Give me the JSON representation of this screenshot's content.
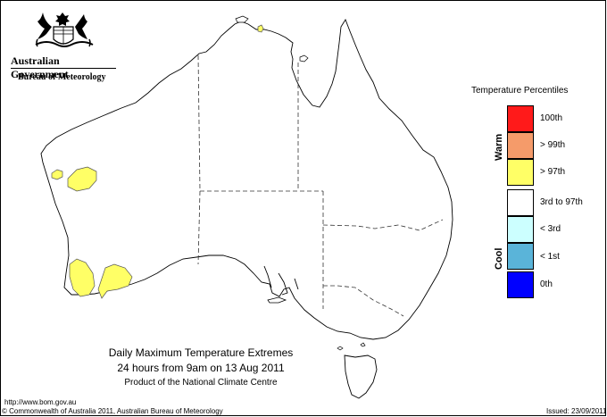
{
  "agency": {
    "government": "Australian Government",
    "bureau": "Bureau of Meteorology"
  },
  "map": {
    "title_line_1": "Daily Maximum Temperature Extremes",
    "title_line_2": "24 hours from 9am on 13 Aug 2011",
    "title_line_3": "Product of the National Climate Centre"
  },
  "legend": {
    "title": "Temperature Percentiles",
    "warm_label": "Warm",
    "cool_label": "Cool",
    "items": [
      {
        "label": "100th",
        "color": "#ff1a1a"
      },
      {
        "label": "> 99th",
        "color": "#f59b6a"
      },
      {
        "label": "> 97th",
        "color": "#ffff66"
      },
      {
        "label": "3rd to 97th",
        "color": "#ffffff"
      },
      {
        "label": "< 3rd",
        "color": "#ccffff"
      },
      {
        "label": "< 1st",
        "color": "#5ab4d9"
      },
      {
        "label": "0th",
        "color": "#0000ff"
      }
    ]
  },
  "footer": {
    "url": "http://www.bom.gov.au",
    "copyright": "© Commonwealth of Australia 2011, Australian Bureau of Meteorology",
    "issued": "Issued: 23/09/2011"
  }
}
